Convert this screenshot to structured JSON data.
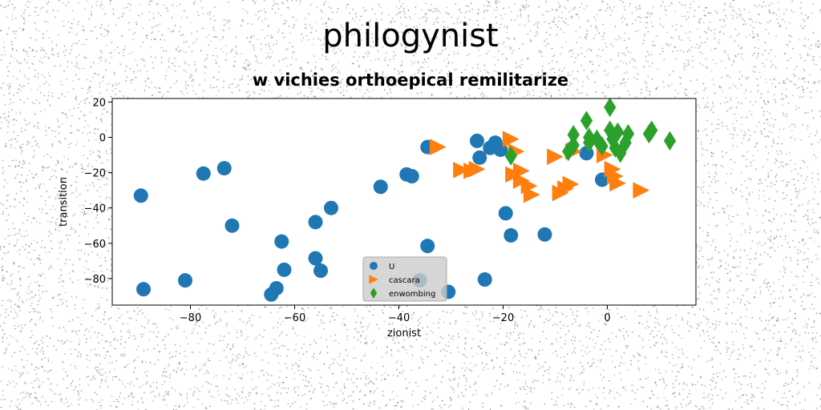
{
  "chart_data": {
    "type": "scatter",
    "title": "philogynist",
    "subtitle": "w vichies orthoepical remilitarize",
    "xlabel": "zionist",
    "ylabel": "transition",
    "xlim": [
      -95,
      17
    ],
    "ylim": [
      -95,
      22
    ],
    "xticks": [
      -80,
      -60,
      -40,
      -20,
      0
    ],
    "yticks": [
      20,
      0,
      -20,
      -40,
      -60,
      -80
    ],
    "grid": false,
    "legend_position": "bottom-center",
    "series": [
      {
        "name": "U",
        "marker": "circle",
        "color": "#1f77b4",
        "points": [
          [
            -89.5,
            -33
          ],
          [
            -89,
            -86
          ],
          [
            -81,
            -81
          ],
          [
            -77.5,
            -20.5
          ],
          [
            -73.5,
            -17.5
          ],
          [
            -72,
            -50
          ],
          [
            -64.5,
            -89
          ],
          [
            -63.5,
            -85.5
          ],
          [
            -62.5,
            -59
          ],
          [
            -62,
            -75
          ],
          [
            -56,
            -48
          ],
          [
            -56,
            -68.5
          ],
          [
            -55,
            -75.5
          ],
          [
            -53,
            -40
          ],
          [
            -43.5,
            -28
          ],
          [
            -38.5,
            -21
          ],
          [
            -37.5,
            -22
          ],
          [
            -36,
            -81
          ],
          [
            -34.5,
            -61.5
          ],
          [
            -34.5,
            -5.5
          ],
          [
            -30.5,
            -87.5
          ],
          [
            -25,
            -2
          ],
          [
            -24.5,
            -11.5
          ],
          [
            -22.5,
            -6
          ],
          [
            -21.5,
            -3
          ],
          [
            -20.5,
            -7
          ],
          [
            -19.5,
            -43
          ],
          [
            -18.5,
            -55.5
          ],
          [
            -23.5,
            -80.5
          ],
          [
            -12,
            -55
          ],
          [
            -4,
            -9
          ],
          [
            -1,
            -24
          ]
        ]
      },
      {
        "name": "cascara",
        "marker": "triangle-right",
        "color": "#ff7f0e",
        "points": [
          [
            -32.5,
            -5.5
          ],
          [
            -28,
            -18.5
          ],
          [
            -26,
            -19
          ],
          [
            -25,
            -18
          ],
          [
            -18.5,
            -1
          ],
          [
            -17.5,
            -8
          ],
          [
            -18,
            -21
          ],
          [
            -16.5,
            -19
          ],
          [
            -16.5,
            -24.5
          ],
          [
            -15,
            -27.5
          ],
          [
            -14.5,
            -32.5
          ],
          [
            -10,
            -11
          ],
          [
            -9,
            -31.5
          ],
          [
            -8,
            -29
          ],
          [
            -7,
            -26.5
          ],
          [
            -6.5,
            -8
          ],
          [
            -0.5,
            -10
          ],
          [
            1,
            -18
          ],
          [
            1.5,
            -22
          ],
          [
            2,
            -26
          ],
          [
            6.5,
            -30
          ]
        ]
      },
      {
        "name": "enwombing",
        "marker": "diamond",
        "color": "#2ca02c",
        "points": [
          [
            -18.5,
            -10.5
          ],
          [
            -7.5,
            -8
          ],
          [
            -6.5,
            1.5
          ],
          [
            -6.5,
            -4.5
          ],
          [
            -4,
            9.5
          ],
          [
            -3.5,
            0
          ],
          [
            -3.5,
            -3
          ],
          [
            -2,
            -1
          ],
          [
            -1,
            -5
          ],
          [
            0.5,
            17
          ],
          [
            0.5,
            4
          ],
          [
            1,
            -1
          ],
          [
            1.5,
            -6
          ],
          [
            2,
            3
          ],
          [
            2.5,
            -9
          ],
          [
            3.5,
            -3
          ],
          [
            4,
            2
          ],
          [
            8,
            2
          ],
          [
            8.5,
            4
          ],
          [
            12,
            -2
          ]
        ]
      }
    ]
  }
}
